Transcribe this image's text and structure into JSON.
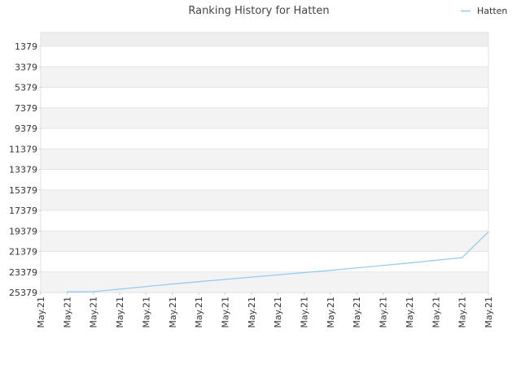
{
  "chart_data": {
    "type": "line",
    "title": "Ranking History for Hatten",
    "xlabel": "",
    "ylabel": "",
    "y_inverted": true,
    "ylim": [
      25379,
      1379
    ],
    "y_ticks": [
      1379,
      3379,
      5379,
      7379,
      9379,
      11379,
      13379,
      15379,
      17379,
      19379,
      21379,
      23379,
      25379
    ],
    "x_ticks": [
      "May.21",
      "May.21",
      "May.21",
      "May.21",
      "May.21",
      "May.21",
      "May.21",
      "May.21",
      "May.21",
      "May.21",
      "May.21",
      "May.21",
      "May.21",
      "May.21",
      "May.21",
      "May.21",
      "May.21",
      "May.21"
    ],
    "grid": "horizontal bands",
    "legend_position": "top-right",
    "series": [
      {
        "name": "Hatten",
        "color": "#90c8f0",
        "x_index": [
          1,
          2,
          3,
          4,
          5,
          6,
          7,
          8,
          9,
          10,
          11,
          12,
          13,
          14,
          15,
          16,
          17
        ],
        "values": [
          25320,
          25300,
          25050,
          24800,
          24550,
          24330,
          24100,
          23880,
          23660,
          23440,
          23220,
          22980,
          22740,
          22500,
          22240,
          21980,
          19460
        ]
      }
    ]
  }
}
